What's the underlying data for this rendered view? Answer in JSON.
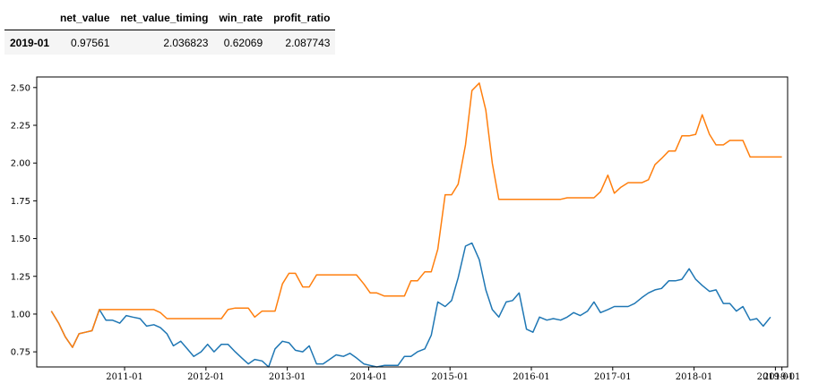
{
  "table": {
    "columns": [
      "net_value",
      "net_value_timing",
      "win_rate",
      "profit_ratio"
    ],
    "rows": [
      {
        "index": "2019-01",
        "net_value": "0.97561",
        "net_value_timing": "2.036823",
        "win_rate": "0.62069",
        "profit_ratio": "2.087743"
      }
    ]
  },
  "chart_data": {
    "type": "line",
    "title": "",
    "xlabel": "",
    "ylabel": "",
    "xlim": [
      2009.92,
      2019.15
    ],
    "ylim": [
      0.65,
      2.57
    ],
    "x_ticks": [
      2011,
      2012,
      2013,
      2014,
      2015,
      2016,
      2017,
      2018,
      2019,
      2019.08
    ],
    "x_tick_labels": [
      "2011-01",
      "2012-01",
      "2013-01",
      "2014-01",
      "2015-01",
      "2016-01",
      "2017-01",
      "2018-01",
      "2019-01",
      "2019-01"
    ],
    "y_ticks": [
      0.75,
      1.0,
      1.25,
      1.5,
      1.75,
      2.0,
      2.25,
      2.5
    ],
    "y_tick_labels": [
      "0.75",
      "1.00",
      "1.25",
      "1.50",
      "1.75",
      "2.00",
      "2.25",
      "2.50"
    ],
    "grid": false,
    "legend": "none",
    "series": [
      {
        "color": "#1f77b4",
        "points": [
          [
            2010.1,
            1.02
          ],
          [
            2010.19,
            0.94
          ],
          [
            2010.27,
            0.85
          ],
          [
            2010.36,
            0.78
          ],
          [
            2010.44,
            0.87
          ],
          [
            2010.52,
            0.88
          ],
          [
            2010.6,
            0.89
          ],
          [
            2010.69,
            1.03
          ],
          [
            2010.77,
            0.96
          ],
          [
            2010.85,
            0.96
          ],
          [
            2010.94,
            0.94
          ],
          [
            2011.02,
            0.99
          ],
          [
            2011.1,
            0.98
          ],
          [
            2011.19,
            0.97
          ],
          [
            2011.27,
            0.92
          ],
          [
            2011.36,
            0.93
          ],
          [
            2011.44,
            0.91
          ],
          [
            2011.52,
            0.87
          ],
          [
            2011.6,
            0.79
          ],
          [
            2011.69,
            0.82
          ],
          [
            2011.77,
            0.77
          ],
          [
            2011.85,
            0.72
          ],
          [
            2011.94,
            0.75
          ],
          [
            2012.02,
            0.8
          ],
          [
            2012.1,
            0.75
          ],
          [
            2012.19,
            0.8
          ],
          [
            2012.27,
            0.8
          ],
          [
            2012.36,
            0.75
          ],
          [
            2012.44,
            0.71
          ],
          [
            2012.52,
            0.67
          ],
          [
            2012.6,
            0.7
          ],
          [
            2012.69,
            0.69
          ],
          [
            2012.77,
            0.65
          ],
          [
            2012.85,
            0.77
          ],
          [
            2012.94,
            0.82
          ],
          [
            2013.02,
            0.81
          ],
          [
            2013.1,
            0.76
          ],
          [
            2013.19,
            0.75
          ],
          [
            2013.27,
            0.79
          ],
          [
            2013.36,
            0.67
          ],
          [
            2013.44,
            0.67
          ],
          [
            2013.52,
            0.7
          ],
          [
            2013.6,
            0.73
          ],
          [
            2013.69,
            0.72
          ],
          [
            2013.77,
            0.74
          ],
          [
            2013.85,
            0.71
          ],
          [
            2013.94,
            0.67
          ],
          [
            2014.02,
            0.66
          ],
          [
            2014.1,
            0.65
          ],
          [
            2014.19,
            0.66
          ],
          [
            2014.27,
            0.66
          ],
          [
            2014.36,
            0.66
          ],
          [
            2014.44,
            0.72
          ],
          [
            2014.52,
            0.72
          ],
          [
            2014.6,
            0.75
          ],
          [
            2014.69,
            0.77
          ],
          [
            2014.77,
            0.86
          ],
          [
            2014.85,
            1.08
          ],
          [
            2014.94,
            1.05
          ],
          [
            2015.02,
            1.09
          ],
          [
            2015.1,
            1.24
          ],
          [
            2015.19,
            1.45
          ],
          [
            2015.27,
            1.47
          ],
          [
            2015.36,
            1.36
          ],
          [
            2015.44,
            1.16
          ],
          [
            2015.52,
            1.03
          ],
          [
            2015.6,
            0.98
          ],
          [
            2015.69,
            1.08
          ],
          [
            2015.77,
            1.09
          ],
          [
            2015.85,
            1.14
          ],
          [
            2015.94,
            0.9
          ],
          [
            2016.02,
            0.88
          ],
          [
            2016.1,
            0.98
          ],
          [
            2016.19,
            0.96
          ],
          [
            2016.27,
            0.97
          ],
          [
            2016.36,
            0.96
          ],
          [
            2016.44,
            0.98
          ],
          [
            2016.52,
            1.01
          ],
          [
            2016.6,
            0.99
          ],
          [
            2016.69,
            1.02
          ],
          [
            2016.77,
            1.08
          ],
          [
            2016.85,
            1.01
          ],
          [
            2016.94,
            1.03
          ],
          [
            2017.02,
            1.05
          ],
          [
            2017.1,
            1.05
          ],
          [
            2017.19,
            1.05
          ],
          [
            2017.27,
            1.07
          ],
          [
            2017.36,
            1.11
          ],
          [
            2017.44,
            1.14
          ],
          [
            2017.52,
            1.16
          ],
          [
            2017.6,
            1.17
          ],
          [
            2017.69,
            1.22
          ],
          [
            2017.77,
            1.22
          ],
          [
            2017.85,
            1.23
          ],
          [
            2017.94,
            1.3
          ],
          [
            2018.02,
            1.23
          ],
          [
            2018.1,
            1.19
          ],
          [
            2018.19,
            1.15
          ],
          [
            2018.27,
            1.16
          ],
          [
            2018.36,
            1.07
          ],
          [
            2018.44,
            1.07
          ],
          [
            2018.52,
            1.02
          ],
          [
            2018.6,
            1.05
          ],
          [
            2018.69,
            0.96
          ],
          [
            2018.77,
            0.97
          ],
          [
            2018.85,
            0.92
          ],
          [
            2018.94,
            0.98
          ]
        ]
      },
      {
        "color": "#ff7f0e",
        "points": [
          [
            2010.1,
            1.02
          ],
          [
            2010.19,
            0.94
          ],
          [
            2010.27,
            0.85
          ],
          [
            2010.36,
            0.78
          ],
          [
            2010.44,
            0.87
          ],
          [
            2010.52,
            0.88
          ],
          [
            2010.6,
            0.89
          ],
          [
            2010.69,
            1.03
          ],
          [
            2010.77,
            1.03
          ],
          [
            2010.85,
            1.03
          ],
          [
            2010.94,
            1.03
          ],
          [
            2011.02,
            1.03
          ],
          [
            2011.1,
            1.03
          ],
          [
            2011.19,
            1.03
          ],
          [
            2011.27,
            1.03
          ],
          [
            2011.36,
            1.03
          ],
          [
            2011.44,
            1.01
          ],
          [
            2011.52,
            0.97
          ],
          [
            2011.6,
            0.97
          ],
          [
            2011.69,
            0.97
          ],
          [
            2011.77,
            0.97
          ],
          [
            2011.85,
            0.97
          ],
          [
            2011.94,
            0.97
          ],
          [
            2012.02,
            0.97
          ],
          [
            2012.1,
            0.97
          ],
          [
            2012.19,
            0.97
          ],
          [
            2012.27,
            1.03
          ],
          [
            2012.36,
            1.04
          ],
          [
            2012.44,
            1.04
          ],
          [
            2012.52,
            1.04
          ],
          [
            2012.6,
            0.98
          ],
          [
            2012.69,
            1.02
          ],
          [
            2012.77,
            1.02
          ],
          [
            2012.85,
            1.02
          ],
          [
            2012.94,
            1.2
          ],
          [
            2013.02,
            1.27
          ],
          [
            2013.1,
            1.27
          ],
          [
            2013.19,
            1.18
          ],
          [
            2013.27,
            1.18
          ],
          [
            2013.36,
            1.26
          ],
          [
            2013.44,
            1.26
          ],
          [
            2013.52,
            1.26
          ],
          [
            2013.6,
            1.26
          ],
          [
            2013.69,
            1.26
          ],
          [
            2013.77,
            1.26
          ],
          [
            2013.85,
            1.26
          ],
          [
            2013.94,
            1.2
          ],
          [
            2014.02,
            1.14
          ],
          [
            2014.1,
            1.14
          ],
          [
            2014.19,
            1.12
          ],
          [
            2014.27,
            1.12
          ],
          [
            2014.36,
            1.12
          ],
          [
            2014.44,
            1.12
          ],
          [
            2014.52,
            1.22
          ],
          [
            2014.6,
            1.22
          ],
          [
            2014.69,
            1.28
          ],
          [
            2014.77,
            1.28
          ],
          [
            2014.85,
            1.43
          ],
          [
            2014.94,
            1.79
          ],
          [
            2015.02,
            1.79
          ],
          [
            2015.1,
            1.86
          ],
          [
            2015.19,
            2.12
          ],
          [
            2015.27,
            2.48
          ],
          [
            2015.36,
            2.53
          ],
          [
            2015.44,
            2.35
          ],
          [
            2015.52,
            2.0
          ],
          [
            2015.6,
            1.76
          ],
          [
            2015.69,
            1.76
          ],
          [
            2015.77,
            1.76
          ],
          [
            2015.85,
            1.76
          ],
          [
            2015.94,
            1.76
          ],
          [
            2016.02,
            1.76
          ],
          [
            2016.1,
            1.76
          ],
          [
            2016.19,
            1.76
          ],
          [
            2016.27,
            1.76
          ],
          [
            2016.36,
            1.76
          ],
          [
            2016.44,
            1.77
          ],
          [
            2016.52,
            1.77
          ],
          [
            2016.6,
            1.77
          ],
          [
            2016.69,
            1.77
          ],
          [
            2016.77,
            1.77
          ],
          [
            2016.85,
            1.81
          ],
          [
            2016.94,
            1.92
          ],
          [
            2017.02,
            1.8
          ],
          [
            2017.1,
            1.84
          ],
          [
            2017.19,
            1.87
          ],
          [
            2017.27,
            1.87
          ],
          [
            2017.36,
            1.87
          ],
          [
            2017.44,
            1.89
          ],
          [
            2017.52,
            1.99
          ],
          [
            2017.6,
            2.03
          ],
          [
            2017.69,
            2.08
          ],
          [
            2017.77,
            2.08
          ],
          [
            2017.85,
            2.18
          ],
          [
            2017.94,
            2.18
          ],
          [
            2018.02,
            2.19
          ],
          [
            2018.1,
            2.32
          ],
          [
            2018.19,
            2.19
          ],
          [
            2018.27,
            2.12
          ],
          [
            2018.36,
            2.12
          ],
          [
            2018.44,
            2.15
          ],
          [
            2018.52,
            2.15
          ],
          [
            2018.6,
            2.15
          ],
          [
            2018.69,
            2.04
          ],
          [
            2018.77,
            2.04
          ],
          [
            2018.85,
            2.04
          ],
          [
            2018.94,
            2.04
          ],
          [
            2019.08,
            2.04
          ]
        ]
      }
    ]
  }
}
